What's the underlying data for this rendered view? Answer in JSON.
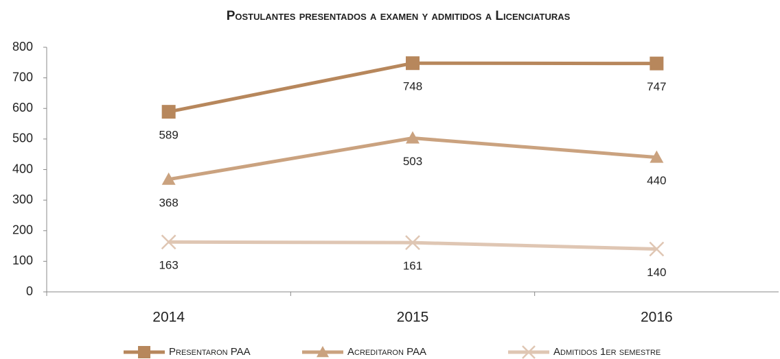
{
  "chart_data": {
    "type": "line",
    "title": "Postulantes presentados a examen y admitidos a Licenciaturas",
    "categories": [
      "2014",
      "2015",
      "2016"
    ],
    "series": [
      {
        "name": "Presentaron PAA",
        "color": "#b7875c",
        "marker": "square",
        "values": [
          589,
          748,
          747
        ]
      },
      {
        "name": "Acreditaron PAA",
        "color": "#caa27f",
        "marker": "triangle",
        "values": [
          368,
          503,
          440
        ]
      },
      {
        "name": "Admitidos 1er semestre",
        "color": "#dfc6b3",
        "marker": "x",
        "values": [
          163,
          161,
          140
        ]
      }
    ],
    "ylim": [
      0,
      800
    ],
    "yticks": [
      0,
      100,
      200,
      300,
      400,
      500,
      600,
      700,
      800
    ],
    "legend": "bottom"
  }
}
